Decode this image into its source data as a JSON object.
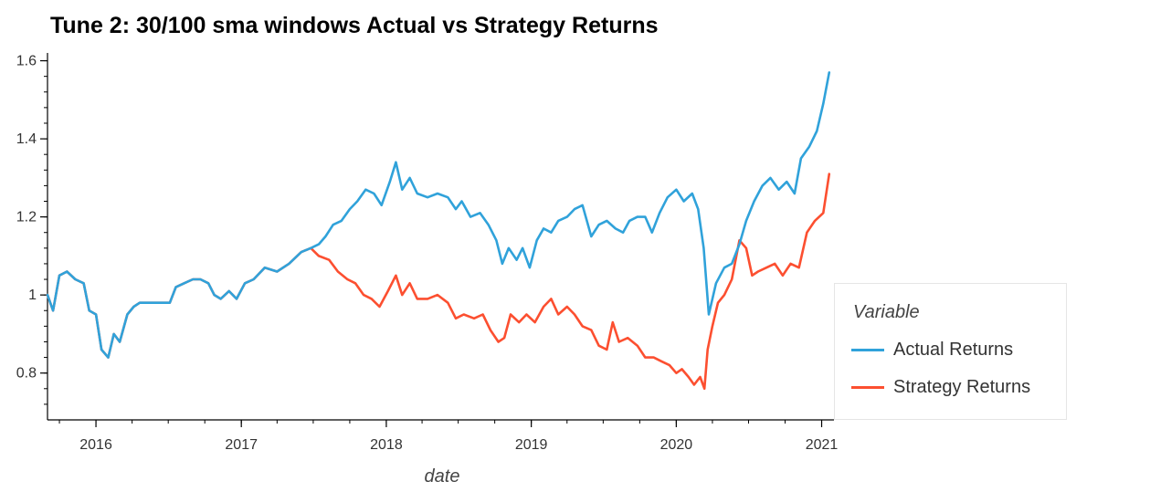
{
  "chart_data": {
    "type": "line",
    "title": "Tune 2: 30/100 sma windows Actual vs Strategy Returns",
    "xlabel": "date",
    "ylabel": "",
    "xlim": [
      "2015-09-01",
      "2021-02-01"
    ],
    "ylim": [
      0.68,
      1.62
    ],
    "x_ticks": [
      "2016",
      "2017",
      "2018",
      "2019",
      "2020",
      "2021"
    ],
    "y_ticks": [
      {
        "value": 0.8,
        "label": "0.8"
      },
      {
        "value": 1.0,
        "label": "1"
      },
      {
        "value": 1.2,
        "label": "1.2"
      },
      {
        "value": 1.4,
        "label": "1.4"
      },
      {
        "value": 1.6,
        "label": "1.6"
      }
    ],
    "legend": {
      "title": "Variable",
      "placement": "right"
    },
    "grid": false,
    "series": [
      {
        "name": "Actual Returns",
        "color": "#30a2da",
        "points": [
          [
            "2015-09-01",
            1.0
          ],
          [
            "2015-09-15",
            0.96
          ],
          [
            "2015-10-01",
            1.05
          ],
          [
            "2015-10-20",
            1.06
          ],
          [
            "2015-11-10",
            1.04
          ],
          [
            "2015-12-01",
            1.03
          ],
          [
            "2015-12-15",
            0.96
          ],
          [
            "2016-01-01",
            0.95
          ],
          [
            "2016-01-15",
            0.86
          ],
          [
            "2016-02-01",
            0.84
          ],
          [
            "2016-02-15",
            0.9
          ],
          [
            "2016-03-01",
            0.88
          ],
          [
            "2016-03-20",
            0.95
          ],
          [
            "2016-04-05",
            0.97
          ],
          [
            "2016-04-20",
            0.98
          ],
          [
            "2016-07-05",
            0.98
          ],
          [
            "2016-07-20",
            1.02
          ],
          [
            "2016-08-10",
            1.03
          ],
          [
            "2016-09-01",
            1.04
          ],
          [
            "2016-09-20",
            1.04
          ],
          [
            "2016-10-10",
            1.03
          ],
          [
            "2016-10-25",
            1.0
          ],
          [
            "2016-11-10",
            0.99
          ],
          [
            "2016-12-01",
            1.01
          ],
          [
            "2016-12-20",
            0.99
          ],
          [
            "2017-01-10",
            1.03
          ],
          [
            "2017-02-01",
            1.04
          ],
          [
            "2017-03-01",
            1.07
          ],
          [
            "2017-04-01",
            1.06
          ],
          [
            "2017-05-01",
            1.08
          ],
          [
            "2017-06-01",
            1.11
          ],
          [
            "2017-06-25",
            1.12
          ],
          [
            "2017-07-15",
            1.13
          ],
          [
            "2017-08-01",
            1.15
          ],
          [
            "2017-08-20",
            1.18
          ],
          [
            "2017-09-10",
            1.19
          ],
          [
            "2017-10-01",
            1.22
          ],
          [
            "2017-10-20",
            1.24
          ],
          [
            "2017-11-10",
            1.27
          ],
          [
            "2017-12-01",
            1.26
          ],
          [
            "2017-12-20",
            1.23
          ],
          [
            "2018-01-10",
            1.29
          ],
          [
            "2018-01-25",
            1.34
          ],
          [
            "2018-02-10",
            1.27
          ],
          [
            "2018-03-01",
            1.3
          ],
          [
            "2018-03-20",
            1.26
          ],
          [
            "2018-04-15",
            1.25
          ],
          [
            "2018-05-10",
            1.26
          ],
          [
            "2018-06-05",
            1.25
          ],
          [
            "2018-06-25",
            1.22
          ],
          [
            "2018-07-10",
            1.24
          ],
          [
            "2018-08-01",
            1.2
          ],
          [
            "2018-08-25",
            1.21
          ],
          [
            "2018-09-15",
            1.18
          ],
          [
            "2018-10-05",
            1.14
          ],
          [
            "2018-10-20",
            1.08
          ],
          [
            "2018-11-05",
            1.12
          ],
          [
            "2018-11-25",
            1.09
          ],
          [
            "2018-12-10",
            1.12
          ],
          [
            "2018-12-28",
            1.07
          ],
          [
            "2019-01-15",
            1.14
          ],
          [
            "2019-02-01",
            1.17
          ],
          [
            "2019-02-20",
            1.16
          ],
          [
            "2019-03-10",
            1.19
          ],
          [
            "2019-04-01",
            1.2
          ],
          [
            "2019-04-20",
            1.22
          ],
          [
            "2019-05-10",
            1.23
          ],
          [
            "2019-06-01",
            1.15
          ],
          [
            "2019-06-20",
            1.18
          ],
          [
            "2019-07-10",
            1.19
          ],
          [
            "2019-08-01",
            1.17
          ],
          [
            "2019-08-20",
            1.16
          ],
          [
            "2019-09-05",
            1.19
          ],
          [
            "2019-09-25",
            1.2
          ],
          [
            "2019-10-15",
            1.2
          ],
          [
            "2019-11-01",
            1.16
          ],
          [
            "2019-11-20",
            1.21
          ],
          [
            "2019-12-10",
            1.25
          ],
          [
            "2020-01-01",
            1.27
          ],
          [
            "2020-01-20",
            1.24
          ],
          [
            "2020-02-10",
            1.26
          ],
          [
            "2020-02-25",
            1.22
          ],
          [
            "2020-03-10",
            1.12
          ],
          [
            "2020-03-23",
            0.95
          ],
          [
            "2020-04-10",
            1.03
          ],
          [
            "2020-05-01",
            1.07
          ],
          [
            "2020-05-20",
            1.08
          ],
          [
            "2020-06-08",
            1.13
          ],
          [
            "2020-06-25",
            1.19
          ],
          [
            "2020-07-15",
            1.24
          ],
          [
            "2020-08-05",
            1.28
          ],
          [
            "2020-08-25",
            1.3
          ],
          [
            "2020-09-15",
            1.27
          ],
          [
            "2020-10-05",
            1.29
          ],
          [
            "2020-10-25",
            1.26
          ],
          [
            "2020-11-10",
            1.35
          ],
          [
            "2020-12-01",
            1.38
          ],
          [
            "2020-12-20",
            1.42
          ],
          [
            "2021-01-05",
            1.49
          ],
          [
            "2021-01-20",
            1.57
          ]
        ]
      },
      {
        "name": "Strategy Returns",
        "color": "#fc4f30",
        "points": [
          [
            "2015-09-01",
            1.0
          ],
          [
            "2015-09-15",
            0.96
          ],
          [
            "2015-10-01",
            1.05
          ],
          [
            "2015-10-20",
            1.06
          ],
          [
            "2015-11-10",
            1.04
          ],
          [
            "2015-12-01",
            1.03
          ],
          [
            "2015-12-15",
            0.96
          ],
          [
            "2016-01-01",
            0.95
          ],
          [
            "2016-01-15",
            0.86
          ],
          [
            "2016-02-01",
            0.84
          ],
          [
            "2016-02-15",
            0.9
          ],
          [
            "2016-03-01",
            0.88
          ],
          [
            "2016-03-20",
            0.95
          ],
          [
            "2016-04-05",
            0.97
          ],
          [
            "2016-04-20",
            0.98
          ],
          [
            "2016-07-05",
            0.98
          ],
          [
            "2016-07-20",
            1.02
          ],
          [
            "2016-08-10",
            1.03
          ],
          [
            "2016-09-01",
            1.04
          ],
          [
            "2016-09-20",
            1.04
          ],
          [
            "2016-10-10",
            1.03
          ],
          [
            "2016-10-25",
            1.0
          ],
          [
            "2016-11-10",
            0.99
          ],
          [
            "2016-12-01",
            1.01
          ],
          [
            "2016-12-20",
            0.99
          ],
          [
            "2017-01-10",
            1.03
          ],
          [
            "2017-02-01",
            1.04
          ],
          [
            "2017-03-01",
            1.07
          ],
          [
            "2017-04-01",
            1.06
          ],
          [
            "2017-05-01",
            1.08
          ],
          [
            "2017-06-01",
            1.11
          ],
          [
            "2017-06-25",
            1.12
          ],
          [
            "2017-07-15",
            1.1
          ],
          [
            "2017-08-10",
            1.09
          ],
          [
            "2017-09-01",
            1.06
          ],
          [
            "2017-09-25",
            1.04
          ],
          [
            "2017-10-15",
            1.03
          ],
          [
            "2017-11-05",
            1.0
          ],
          [
            "2017-11-25",
            0.99
          ],
          [
            "2017-12-15",
            0.97
          ],
          [
            "2018-01-05",
            1.01
          ],
          [
            "2018-01-25",
            1.05
          ],
          [
            "2018-02-10",
            1.0
          ],
          [
            "2018-03-01",
            1.03
          ],
          [
            "2018-03-20",
            0.99
          ],
          [
            "2018-04-15",
            0.99
          ],
          [
            "2018-05-10",
            1.0
          ],
          [
            "2018-06-05",
            0.98
          ],
          [
            "2018-06-25",
            0.94
          ],
          [
            "2018-07-15",
            0.95
          ],
          [
            "2018-08-10",
            0.94
          ],
          [
            "2018-09-01",
            0.95
          ],
          [
            "2018-09-20",
            0.91
          ],
          [
            "2018-10-10",
            0.88
          ],
          [
            "2018-10-25",
            0.89
          ],
          [
            "2018-11-10",
            0.95
          ],
          [
            "2018-12-01",
            0.93
          ],
          [
            "2018-12-20",
            0.95
          ],
          [
            "2019-01-10",
            0.93
          ],
          [
            "2019-02-01",
            0.97
          ],
          [
            "2019-02-20",
            0.99
          ],
          [
            "2019-03-10",
            0.95
          ],
          [
            "2019-04-01",
            0.97
          ],
          [
            "2019-04-20",
            0.95
          ],
          [
            "2019-05-10",
            0.92
          ],
          [
            "2019-06-01",
            0.91
          ],
          [
            "2019-06-20",
            0.87
          ],
          [
            "2019-07-10",
            0.86
          ],
          [
            "2019-07-25",
            0.93
          ],
          [
            "2019-08-10",
            0.88
          ],
          [
            "2019-09-01",
            0.89
          ],
          [
            "2019-09-25",
            0.87
          ],
          [
            "2019-10-15",
            0.84
          ],
          [
            "2019-11-05",
            0.84
          ],
          [
            "2019-11-25",
            0.83
          ],
          [
            "2019-12-15",
            0.82
          ],
          [
            "2020-01-01",
            0.8
          ],
          [
            "2020-01-15",
            0.81
          ],
          [
            "2020-02-01",
            0.79
          ],
          [
            "2020-02-15",
            0.77
          ],
          [
            "2020-03-01",
            0.79
          ],
          [
            "2020-03-12",
            0.76
          ],
          [
            "2020-03-20",
            0.86
          ],
          [
            "2020-04-01",
            0.92
          ],
          [
            "2020-04-15",
            0.98
          ],
          [
            "2020-05-01",
            1.0
          ],
          [
            "2020-05-20",
            1.04
          ],
          [
            "2020-06-08",
            1.14
          ],
          [
            "2020-06-25",
            1.12
          ],
          [
            "2020-07-10",
            1.05
          ],
          [
            "2020-07-25",
            1.06
          ],
          [
            "2020-08-15",
            1.07
          ],
          [
            "2020-09-05",
            1.08
          ],
          [
            "2020-09-25",
            1.05
          ],
          [
            "2020-10-15",
            1.08
          ],
          [
            "2020-11-05",
            1.07
          ],
          [
            "2020-11-25",
            1.16
          ],
          [
            "2020-12-15",
            1.19
          ],
          [
            "2021-01-05",
            1.21
          ],
          [
            "2021-01-20",
            1.31
          ]
        ]
      }
    ]
  }
}
